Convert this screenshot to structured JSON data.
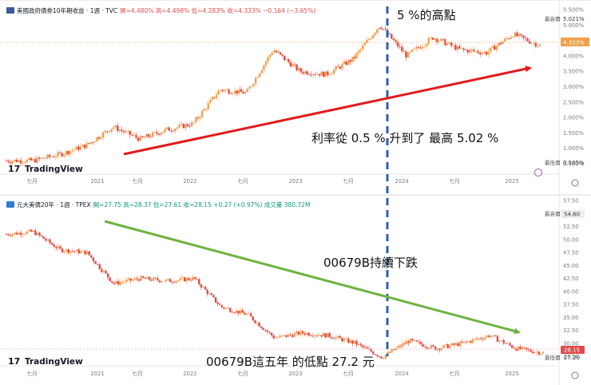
{
  "colors": {
    "candle_up": "#f0a04b",
    "candle_down": "#e14b4b",
    "arrow_up": "#e31a1c",
    "arrow_down": "#6db33f",
    "divider": "#2f5fa8",
    "axis_text": "#787b86",
    "panel_border": "#d9d9d9"
  },
  "top_panel": {
    "symbol_title": "美國政府債券10年期收益 · 1週 · TVC",
    "ohlc_text": "開=4.480%  高=4.498%  低=4.283%  收=4.333%  −0.164 (−3.65%)",
    "y_axis_labels": [
      "5.500%",
      "5.000%",
      "4.500%",
      "4.000%",
      "3.500%",
      "3.000%",
      "2.500%",
      "2.000%",
      "1.500%",
      "1.000%",
      "0.500%"
    ],
    "high_tag": "最高價",
    "high_value": "5.021%",
    "low_tag": "最低價",
    "low_value": "0.505%",
    "last_value": "4.333%",
    "x_axis_labels": [
      "七月",
      "2021",
      "七月",
      "2022",
      "七月",
      "2023",
      "七月",
      "2024",
      "七月",
      "2025"
    ],
    "annotation_peak": "5 %的高點",
    "annotation_rise": "利率從 0.5 % 升到了 最高 5.02 %",
    "logo": "TradingView"
  },
  "bottom_panel": {
    "symbol_title": "元大美債20年 · 1週 · TPEX",
    "ohlc_text": "開=27.75  高=28.37  低=27.61  收=28.15  +0.27 (+0.97%)  成交量 380.72M",
    "y_axis_labels": [
      "57.50",
      "55.00",
      "52.50",
      "50.00",
      "47.50",
      "45.00",
      "42.50",
      "40.00",
      "37.50",
      "35.00",
      "32.50",
      "30.00",
      "27.50"
    ],
    "high_tag": "最高價",
    "high_value": "54.60",
    "low_tag": "最低價",
    "low_value": "27.20",
    "last_value": "28.15",
    "x_axis_labels": [
      "七月",
      "2021",
      "七月",
      "2022",
      "七月",
      "2023",
      "七月",
      "2024",
      "七月",
      "2025"
    ],
    "annotation_decline": "00679B持續下跌",
    "annotation_low": "00679B這五年 的低點 27.2 元",
    "logo": "TradingView"
  },
  "chart_data": [
    {
      "type": "line",
      "title": "美國政府債券10年期收益 · 1週 · TVC",
      "x": [
        "2020-04",
        "2020-07",
        "2020-10",
        "2021-01",
        "2021-04",
        "2021-07",
        "2021-10",
        "2022-01",
        "2022-04",
        "2022-07",
        "2022-10",
        "2023-01",
        "2023-04",
        "2023-07",
        "2023-10",
        "2024-01",
        "2024-04",
        "2024-07",
        "2024-10",
        "2025-01",
        "2025-04"
      ],
      "series": [
        {
          "values": [
            0.6,
            0.6,
            0.8,
            1.1,
            1.7,
            1.3,
            1.6,
            1.8,
            2.9,
            2.8,
            4.2,
            3.5,
            3.4,
            3.9,
            5.0,
            4.0,
            4.6,
            4.2,
            4.1,
            4.7,
            4.33
          ]
        }
      ],
      "ylim": [
        0.3,
        5.6
      ]
    },
    {
      "type": "line",
      "title": "元大美債20年 · 1週 · TPEX",
      "x": [
        "2020-04",
        "2020-07",
        "2020-10",
        "2021-01",
        "2021-04",
        "2021-07",
        "2021-10",
        "2022-01",
        "2022-04",
        "2022-07",
        "2022-10",
        "2023-01",
        "2023-04",
        "2023-07",
        "2023-10",
        "2024-01",
        "2024-04",
        "2024-07",
        "2024-10",
        "2025-01",
        "2025-04"
      ],
      "series": [
        {
          "values": [
            51.0,
            51.5,
            48.0,
            47.5,
            41.5,
            42.5,
            42.0,
            42.5,
            37.0,
            35.5,
            31.0,
            32.0,
            31.5,
            30.0,
            27.3,
            30.5,
            29.0,
            30.0,
            31.5,
            29.0,
            28.15
          ]
        }
      ],
      "ylim": [
        26.5,
        58.0
      ]
    }
  ]
}
